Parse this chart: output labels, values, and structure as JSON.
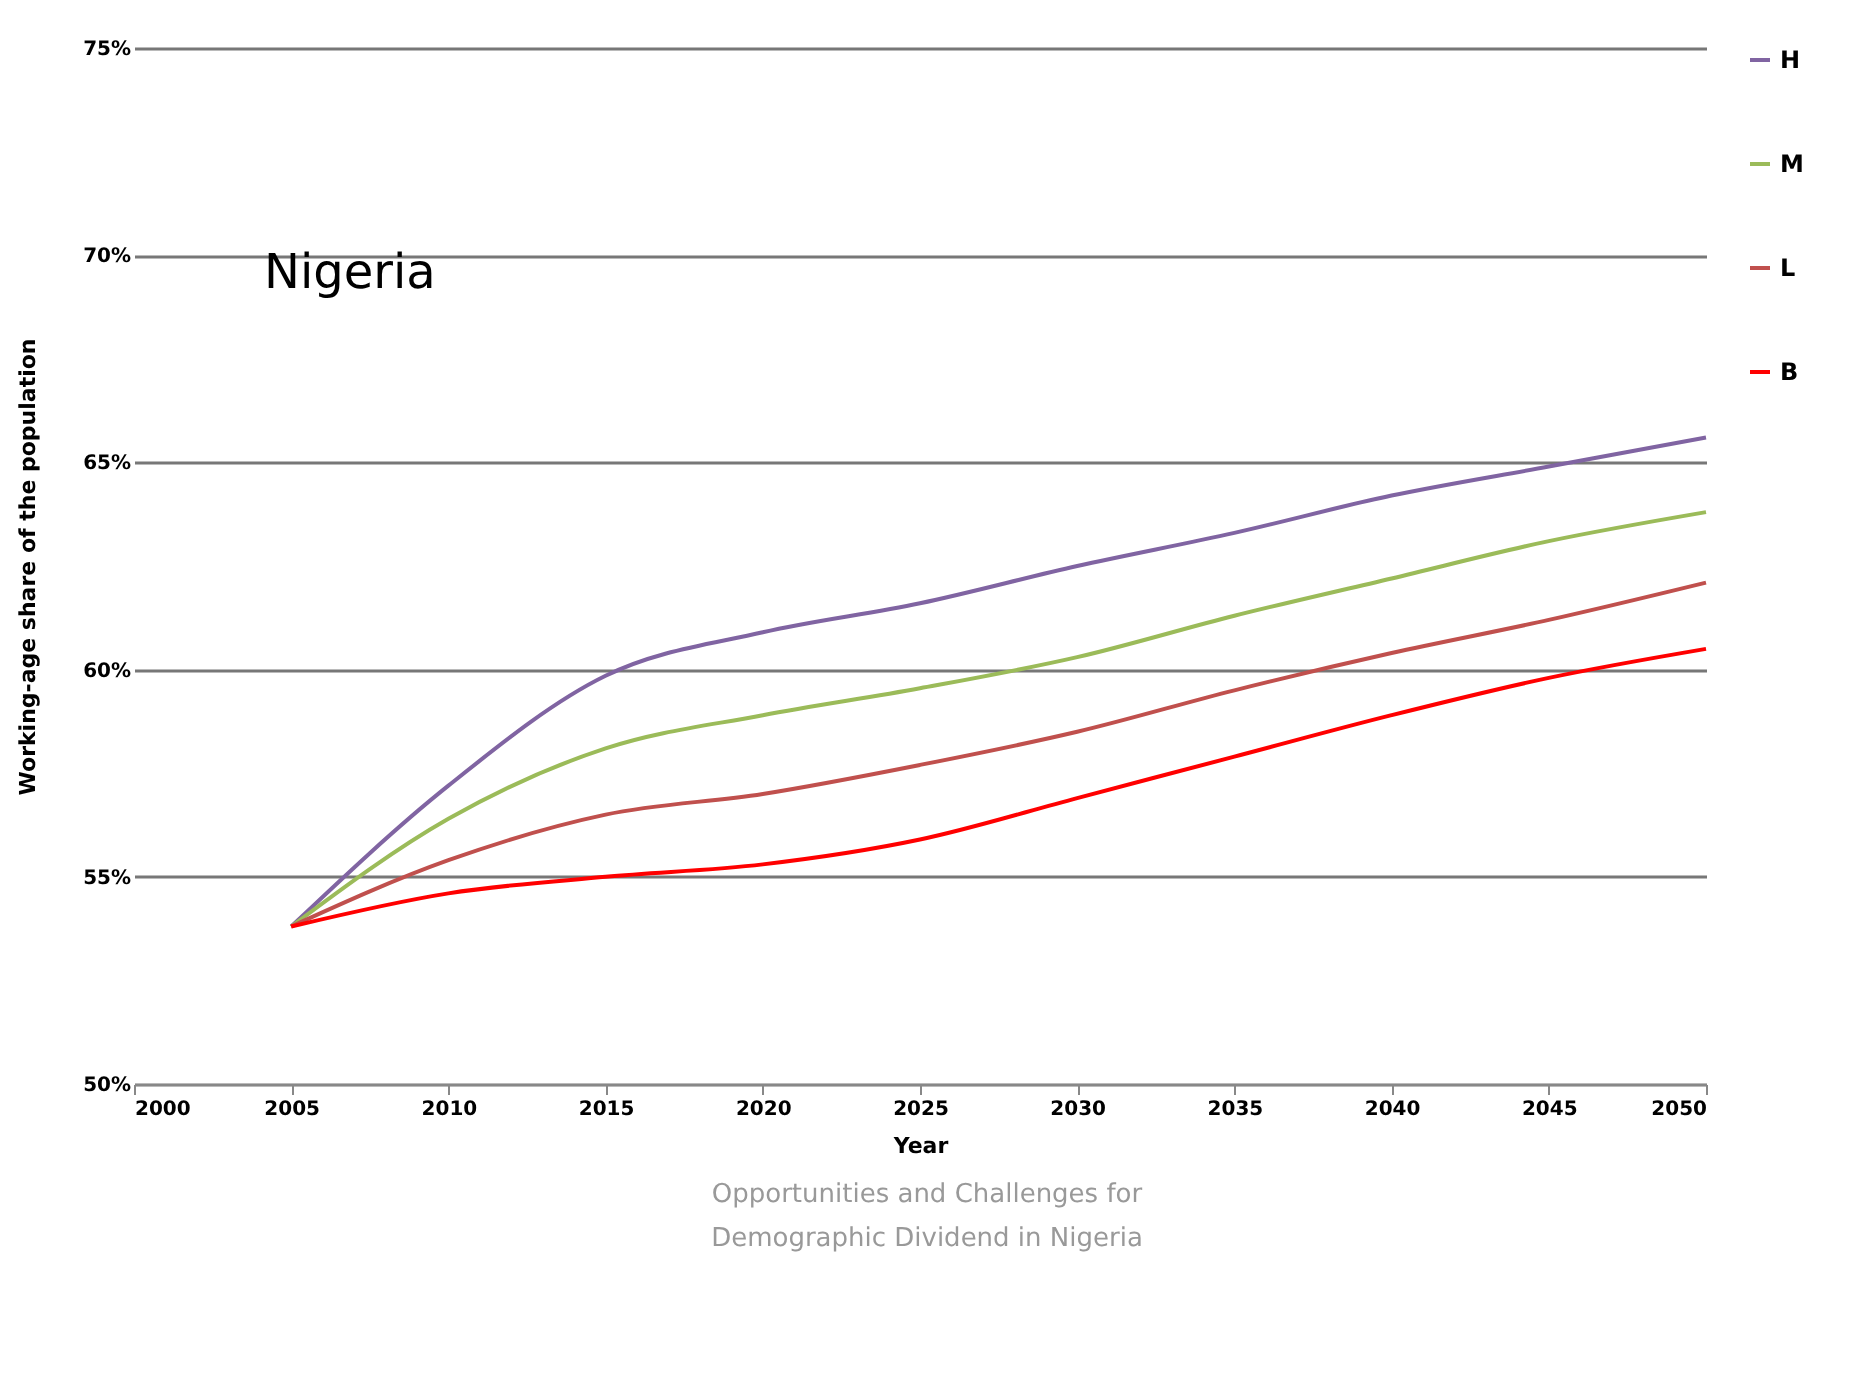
{
  "chart_data": {
    "type": "line",
    "title": "Nigeria",
    "xlabel": "Year",
    "ylabel": "Working-age share of the population",
    "x": [
      2005,
      2010,
      2015,
      2020,
      2025,
      2030,
      2035,
      2040,
      2045,
      2050
    ],
    "series": [
      {
        "name": "H",
        "color": "#8064a2",
        "values": [
          53.8,
          57.2,
          59.85,
          60.9,
          61.6,
          62.5,
          63.3,
          64.2,
          64.9,
          65.6
        ]
      },
      {
        "name": "M",
        "color": "#9bbb59",
        "values": [
          53.8,
          56.4,
          58.1,
          58.9,
          59.55,
          60.3,
          61.3,
          62.2,
          63.1,
          63.8
        ]
      },
      {
        "name": "L",
        "color": "#c0504d",
        "values": [
          53.8,
          55.4,
          56.5,
          57.0,
          57.7,
          58.5,
          59.5,
          60.4,
          61.2,
          62.1
        ]
      },
      {
        "name": "B",
        "color": "#ff0000",
        "values": [
          53.8,
          54.6,
          55.0,
          55.3,
          55.9,
          56.9,
          57.9,
          58.9,
          59.8,
          60.5
        ]
      }
    ],
    "xlim": [
      2000,
      2050
    ],
    "xticks": [
      2000,
      2005,
      2010,
      2015,
      2020,
      2025,
      2030,
      2035,
      2040,
      2045,
      2050
    ],
    "ylim": [
      50,
      75
    ],
    "yticks": [
      {
        "value": 50,
        "label": "50%"
      },
      {
        "value": 55,
        "label": "55%"
      },
      {
        "value": 60,
        "label": "60%"
      },
      {
        "value": 65,
        "label": "65%"
      },
      {
        "value": 70,
        "label": "70%"
      },
      {
        "value": 75,
        "label": "75%"
      }
    ],
    "grid": "y",
    "legend": "right",
    "marker": "none",
    "line_style": "solid",
    "annotations": [
      "Opportunities and Challenges for Demographic Dividend in Nigeria"
    ]
  }
}
